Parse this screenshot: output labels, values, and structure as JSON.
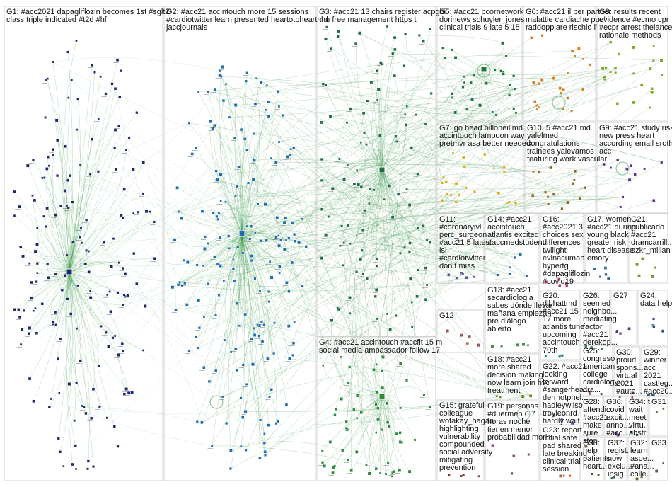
{
  "graph": {
    "groups": [
      {
        "id": "G1",
        "lines": [
          "G1: #acc2021 dapagliflozin becomes 1st #sglt2i",
          "class triple indicated #t2d #hf"
        ],
        "color": "#1b2a6b"
      },
      {
        "id": "G2",
        "lines": [
          "G2: #acc21 accintouch more 15 sessions",
          "#cardiotwitter learn presented heartotbheartmd",
          "jaccjournals"
        ],
        "color": "#1e6fb0"
      },
      {
        "id": "G3",
        "lines": [
          "G3: #acc21 13 chairs register acpgbi",
          "thu free management https t"
        ],
        "color": "#1f6b4a"
      },
      {
        "id": "G4",
        "lines": [
          "G4: #acc21 accintouch #accfit 15 m",
          "social media ambassador follow 17"
        ],
        "color": "#2e8b3a"
      },
      {
        "id": "G5",
        "lines": [
          "G5: #acc21 pcornetwork",
          "dorinews schuyler_jones",
          "clinical trials 9 late 5 15"
        ],
        "color": "#1a7a3a"
      },
      {
        "id": "G6",
        "lines": [
          "G6: #acc21 il per partner",
          "malattie cardiache puo'",
          "raddoppiare rischio l'"
        ],
        "color": "#d47f1a"
      },
      {
        "id": "G7",
        "lines": [
          "G7: go head billoneillmd",
          "accintouch lampoon way",
          "pretmvr asa better needed"
        ],
        "color": "#d9b21a"
      },
      {
        "id": "G8",
        "lines": [
          "G8: results recent",
          "evidence #ecmo cpr",
          "#ecpr arrest thelancet",
          "rationale methods"
        ],
        "color": "#7aaa2a"
      },
      {
        "id": "G9",
        "lines": [
          "G9: #acc21 study risk",
          "new press heart",
          "according email sroth",
          "acc"
        ],
        "color": "#6a2a8a"
      },
      {
        "id": "G10",
        "lines": [
          "G10: 5 #acc21 md",
          "yalelmed",
          "congratulations",
          "trainees yalevamos",
          "featuring work vascular"
        ],
        "color": "#8a6a1a"
      },
      {
        "id": "G11",
        "lines": [
          "G11:",
          "#coronaryivl",
          "perc_surgeon",
          "#acc21 5 latest",
          "isi",
          "#cardiotwitter",
          "don t miss"
        ],
        "color": "#5a5a9a"
      },
      {
        "id": "G12",
        "lines": [
          "G12"
        ],
        "color": "#9a5a5a"
      },
      {
        "id": "G13",
        "lines": [
          "G13: #acc21",
          "secardiologia",
          "sabes dónde llevar",
          "mañana empiezan",
          "pre diálogo",
          "abierto"
        ],
        "color": "#4a8a4a"
      },
      {
        "id": "G14",
        "lines": [
          "G14: #acc21",
          "accintouch",
          "atlantis excited",
          "#accmedstudent"
        ],
        "color": "#2a6aaa"
      },
      {
        "id": "G15",
        "lines": [
          "G15: grateful",
          "colleague",
          "wofakay_hagan",
          "highlighting",
          "vulnerability",
          "compounded",
          "social adversity",
          "mitigating",
          "prevention"
        ],
        "color": "#7a3a2a"
      },
      {
        "id": "G16",
        "lines": [
          "G16:",
          "#acc2021 3",
          "choices sex",
          "differences",
          "twilight",
          "evinacumab",
          "hypertg",
          "#dapagliflozin",
          "#covid19"
        ],
        "color": "#aa3a6a"
      },
      {
        "id": "G17",
        "lines": [
          "G17: women",
          "#acc21 during",
          "young black",
          "greater risk",
          "heart disease",
          "emory"
        ],
        "color": "#3a6a9a"
      },
      {
        "id": "G18",
        "lines": [
          "G18: #acc21",
          "more shared",
          "decision making",
          "now learn join hvc",
          "treatment"
        ],
        "color": "#6a8a2a"
      },
      {
        "id": "G19",
        "lines": [
          "G19: personas",
          "#duermen 6 7",
          "horas noche",
          "tienen menor",
          "probabilidad morir"
        ],
        "color": "#8a4a8a"
      },
      {
        "id": "G20",
        "lines": [
          "G20:",
          "dlbhattmd",
          "#acc21 15",
          "17 more",
          "atlantis tune",
          "upcoming",
          "accintouch",
          "70th"
        ],
        "color": "#2a8a8a"
      },
      {
        "id": "G21",
        "lines": [
          "G21:",
          "publicado",
          "#acc21",
          "dramcarrill...",
          "ozkr_millan"
        ],
        "color": "#8a8a2a"
      },
      {
        "id": "G22",
        "lines": [
          "G22: #acc21",
          "looking",
          "forward",
          "#sangerhea...",
          "dermotphel...",
          "hadleywilso...",
          "troyleonrd",
          "hardly wait..."
        ],
        "color": "#4a4aaa"
      },
      {
        "id": "G23",
        "lines": [
          "G23: report",
          "initial safe",
          "pad shared",
          "late breaking",
          "clinical trial",
          "session"
        ],
        "color": "#aa6a2a"
      },
      {
        "id": "G24",
        "lines": [
          "G24:",
          "data help"
        ],
        "color": "#2a4a8a"
      },
      {
        "id": "G25",
        "lines": [
          "G25:",
          "congreso",
          "american",
          "college",
          "cardiology",
          "dra..."
        ],
        "color": "#6a2a4a"
      },
      {
        "id": "G26",
        "lines": [
          "G26:",
          "seemed",
          "neighbo...",
          "mediating",
          "factor",
          "#acc21",
          "derekop..."
        ],
        "color": "#3a7a5a"
      },
      {
        "id": "G27",
        "lines": [
          "G27"
        ],
        "color": "#5a3a7a"
      },
      {
        "id": "G28",
        "lines": [
          "G28:",
          "attendi...",
          "#acc21",
          "make",
          "sure",
          "stop"
        ],
        "color": "#7a5a3a"
      },
      {
        "id": "G29",
        "lines": [
          "G29:",
          "winner",
          "acc",
          "2021",
          "castleg...",
          "#acc20..."
        ],
        "color": "#3a5a7a"
      },
      {
        "id": "G30",
        "lines": [
          "G30:",
          "proud",
          "spons...",
          "virtual",
          "2021",
          "#auto..."
        ],
        "color": "#7a3a5a"
      },
      {
        "id": "G31",
        "lines": [
          "G31"
        ],
        "color": "#4a7a3a"
      },
      {
        "id": "G33",
        "lines": [
          "G33"
        ],
        "color": "#5a5a5a"
      },
      {
        "id": "G34",
        "lines": [
          "G34: t",
          "wait",
          "meet",
          "virtu...",
          "abstr..."
        ],
        "color": "#2a5a5a"
      },
      {
        "id": "G35",
        "lines": [
          "G35:",
          "help",
          "patients",
          "heart..."
        ],
        "color": "#6a4a2a"
      },
      {
        "id": "G36",
        "lines": [
          "G36:",
          "covid",
          "excit...",
          "anno...",
          "#acc..."
        ],
        "color": "#4a2a6a"
      },
      {
        "id": "G37",
        "lines": [
          "G37:",
          "regist...",
          "now",
          "exclu...",
          "insig..."
        ],
        "color": "#2a6a4a"
      },
      {
        "id": "G32",
        "lines": [
          "G32:",
          "learn",
          "asoe...",
          "#ana...",
          "colle..."
        ],
        "color": "#6a6a2a"
      }
    ]
  }
}
